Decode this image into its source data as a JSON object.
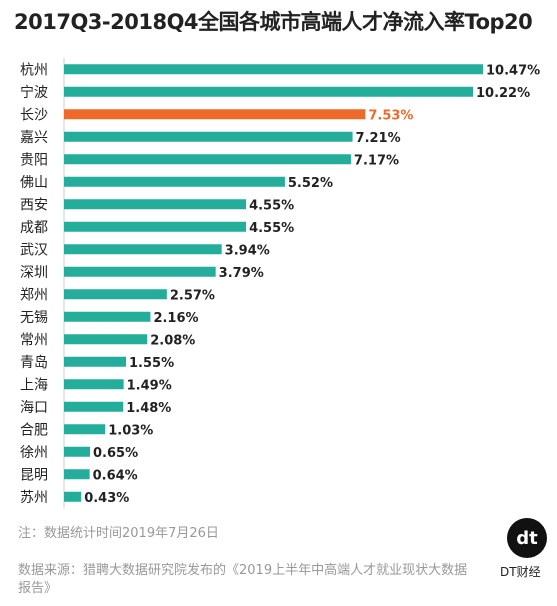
{
  "chart_data": {
    "type": "bar",
    "orientation": "horizontal",
    "title": "2017Q3-2018Q4全国各城市高端人才净流入率Top20",
    "categories": [
      "杭州",
      "宁波",
      "长沙",
      "嘉兴",
      "贵阳",
      "佛山",
      "西安",
      "成都",
      "武汉",
      "深圳",
      "郑州",
      "无锡",
      "常州",
      "青岛",
      "上海",
      "海口",
      "合肥",
      "徐州",
      "昆明",
      "苏州"
    ],
    "values": [
      10.47,
      10.22,
      7.53,
      7.21,
      7.17,
      5.52,
      4.55,
      4.55,
      3.94,
      3.79,
      2.57,
      2.16,
      2.08,
      1.55,
      1.49,
      1.48,
      1.03,
      0.65,
      0.64,
      0.43
    ],
    "value_labels": [
      "10.47%",
      "10.22%",
      "7.53%",
      "7.21%",
      "7.17%",
      "5.52%",
      "4.55%",
      "4.55%",
      "3.94%",
      "3.79%",
      "2.57%",
      "2.16%",
      "2.08%",
      "1.55%",
      "1.49%",
      "1.48%",
      "1.03%",
      "0.65%",
      "0.64%",
      "0.43%"
    ],
    "highlight_index": 2,
    "xlim": [
      0,
      10.47
    ],
    "grid": false,
    "colors": {
      "bar": "#23ad9a",
      "highlight": "#ee6a2b",
      "label": "#222222"
    }
  },
  "footnote": "注：数据统计时间2019年7月26日",
  "source": "数据来源：猎聘大数据研究院发布的《2019上半年中高端人才就业现状大数据报告》",
  "logo": {
    "mark": "dt",
    "name": "DT财经"
  }
}
